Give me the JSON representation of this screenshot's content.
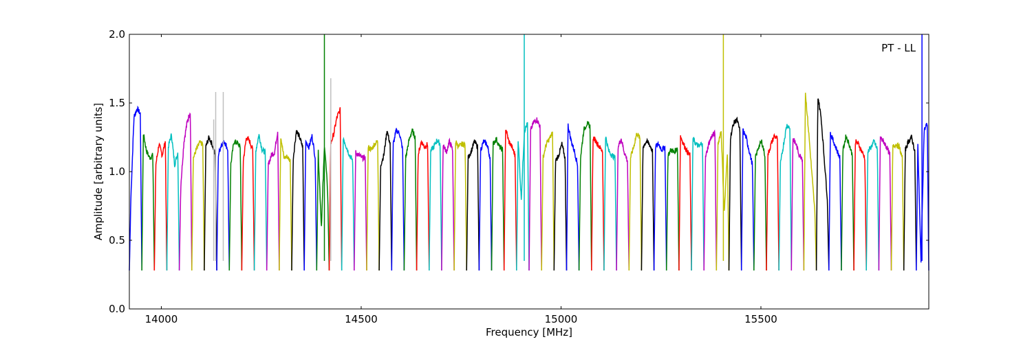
{
  "chart_data": {
    "type": "line",
    "title": "",
    "xlabel": "Frequency [MHz]",
    "ylabel": "Amplitude [arbitrary units]",
    "xlim": [
      13920,
      15920
    ],
    "ylim": [
      0.0,
      2.0
    ],
    "x_ticks": [
      14000,
      14500,
      15000,
      15500
    ],
    "y_ticks": [
      0.0,
      0.5,
      1.0,
      1.5,
      2.0
    ],
    "x_tick_labels": [
      "14000",
      "14500",
      "15000",
      "15500"
    ],
    "y_tick_labels": [
      "0.0",
      "0.5",
      "1.0",
      "1.5",
      "2.0"
    ],
    "grid": false,
    "annotation": "PT - LL",
    "channel_width_mhz": 31.25,
    "first_channel_start_mhz": 13920,
    "color_cycle": [
      "#0000ff",
      "#008000",
      "#ff0000",
      "#00bfbf",
      "#bf00bf",
      "#bfbf00",
      "#000000"
    ],
    "series": [
      {
        "start": 13920.0,
        "width": 31.25,
        "color": "#0000ff",
        "levels": [
          0.8,
          1.4,
          1.46,
          1.42
        ]
      },
      {
        "start": 13951.25,
        "width": 31.25,
        "color": "#008000",
        "levels": [
          1.28,
          1.15,
          1.1,
          1.12
        ]
      },
      {
        "start": 13982.5,
        "width": 31.25,
        "color": "#ff0000",
        "levels": [
          1.05,
          1.2,
          1.12,
          1.22
        ]
      },
      {
        "start": 14013.75,
        "width": 31.25,
        "color": "#00bfbf",
        "levels": [
          1.18,
          1.27,
          1.05,
          1.14
        ]
      },
      {
        "start": 14045.0,
        "width": 31.25,
        "color": "#bf00bf",
        "levels": [
          0.9,
          1.22,
          1.36,
          1.44
        ]
      },
      {
        "start": 14076.25,
        "width": 31.25,
        "color": "#bfbf00",
        "levels": [
          1.1,
          1.16,
          1.21,
          1.2
        ]
      },
      {
        "start": 14107.5,
        "width": 31.25,
        "color": "#000000",
        "levels": [
          1.18,
          1.25,
          1.2,
          1.12
        ]
      },
      {
        "start": 14138.75,
        "width": 31.25,
        "color": "#0000ff",
        "levels": [
          1.12,
          1.2,
          1.22,
          1.16
        ]
      },
      {
        "start": 14170.0,
        "width": 31.25,
        "color": "#008000",
        "levels": [
          1.05,
          1.22,
          1.21,
          1.18
        ]
      },
      {
        "start": 14201.25,
        "width": 31.25,
        "color": "#ff0000",
        "levels": [
          1.08,
          1.25,
          1.22,
          1.16
        ]
      },
      {
        "start": 14232.5,
        "width": 31.25,
        "color": "#00bfbf",
        "levels": [
          1.15,
          1.27,
          1.16,
          1.14
        ]
      },
      {
        "start": 14263.75,
        "width": 31.25,
        "color": "#bf00bf",
        "levels": [
          1.05,
          1.12,
          1.14,
          1.3
        ]
      },
      {
        "start": 14295.0,
        "width": 31.25,
        "color": "#bfbf00",
        "levels": [
          1.26,
          1.1,
          1.11,
          1.08
        ]
      },
      {
        "start": 14326.25,
        "width": 31.25,
        "color": "#000000",
        "levels": [
          1.1,
          1.3,
          1.25,
          1.18
        ]
      },
      {
        "start": 14357.5,
        "width": 31.25,
        "color": "#0000ff",
        "levels": [
          1.22,
          1.18,
          1.26,
          1.1
        ]
      },
      {
        "start": 14388.75,
        "width": 31.25,
        "color": "#008000",
        "levels": [
          1.15,
          0.6,
          1.2,
          0.85
        ]
      },
      {
        "start": 14420.0,
        "width": 31.25,
        "color": "#ff0000",
        "levels": [
          1.2,
          1.28,
          1.4,
          1.45
        ]
      },
      {
        "start": 14451.25,
        "width": 31.25,
        "color": "#00bfbf",
        "levels": [
          1.25,
          1.18,
          1.12,
          1.08
        ]
      },
      {
        "start": 14482.5,
        "width": 31.25,
        "color": "#bf00bf",
        "levels": [
          1.14,
          1.12,
          1.1,
          1.1
        ]
      },
      {
        "start": 14513.75,
        "width": 31.25,
        "color": "#bfbf00",
        "levels": [
          1.18,
          1.16,
          1.2,
          1.22
        ]
      },
      {
        "start": 14545.0,
        "width": 31.25,
        "color": "#000000",
        "levels": [
          1.05,
          1.12,
          1.3,
          1.2
        ]
      },
      {
        "start": 14576.25,
        "width": 31.25,
        "color": "#0000ff",
        "levels": [
          1.2,
          1.3,
          1.28,
          1.16
        ]
      },
      {
        "start": 14607.5,
        "width": 31.25,
        "color": "#008000",
        "levels": [
          1.1,
          1.22,
          1.3,
          1.25
        ]
      },
      {
        "start": 14638.75,
        "width": 31.25,
        "color": "#ff0000",
        "levels": [
          1.12,
          1.22,
          1.18,
          1.2
        ]
      },
      {
        "start": 14670.0,
        "width": 31.25,
        "color": "#00bfbf",
        "levels": [
          1.15,
          1.18,
          1.23,
          1.2
        ]
      },
      {
        "start": 14701.25,
        "width": 31.25,
        "color": "#bf00bf",
        "levels": [
          1.2,
          1.14,
          1.22,
          1.16
        ]
      },
      {
        "start": 14732.5,
        "width": 31.25,
        "color": "#bfbf00",
        "levels": [
          1.22,
          1.18,
          1.2,
          1.2
        ]
      },
      {
        "start": 14763.75,
        "width": 31.25,
        "color": "#000000",
        "levels": [
          1.1,
          1.15,
          1.22,
          1.18
        ]
      },
      {
        "start": 14795.0,
        "width": 31.25,
        "color": "#0000ff",
        "levels": [
          1.16,
          1.22,
          1.2,
          1.1
        ]
      },
      {
        "start": 14826.25,
        "width": 31.25,
        "color": "#008000",
        "levels": [
          1.2,
          1.24,
          1.18,
          1.16
        ]
      },
      {
        "start": 14857.5,
        "width": 31.25,
        "color": "#ff0000",
        "levels": [
          1.32,
          1.22,
          1.18,
          1.12
        ]
      },
      {
        "start": 14888.75,
        "width": 31.25,
        "color": "#00bfbf",
        "levels": [
          1.25,
          0.8,
          1.3,
          1.35
        ]
      },
      {
        "start": 14920.0,
        "width": 31.25,
        "color": "#bf00bf",
        "levels": [
          1.3,
          1.36,
          1.38,
          1.33
        ]
      },
      {
        "start": 14951.25,
        "width": 31.25,
        "color": "#bfbf00",
        "levels": [
          1.1,
          1.2,
          1.24,
          1.28
        ]
      },
      {
        "start": 14982.5,
        "width": 31.25,
        "color": "#000000",
        "levels": [
          1.08,
          1.12,
          1.2,
          1.1
        ]
      },
      {
        "start": 15013.75,
        "width": 31.25,
        "color": "#0000ff",
        "levels": [
          1.34,
          1.22,
          1.15,
          1.05
        ]
      },
      {
        "start": 15045.0,
        "width": 31.25,
        "color": "#008000",
        "levels": [
          1.1,
          1.3,
          1.35,
          1.33
        ]
      },
      {
        "start": 15076.25,
        "width": 31.25,
        "color": "#ff0000",
        "levels": [
          1.25,
          1.22,
          1.18,
          1.15
        ]
      },
      {
        "start": 15107.5,
        "width": 31.25,
        "color": "#00bfbf",
        "levels": [
          1.26,
          1.15,
          1.12,
          1.1
        ]
      },
      {
        "start": 15138.75,
        "width": 31.25,
        "color": "#bf00bf",
        "levels": [
          1.18,
          1.24,
          1.14,
          1.08
        ]
      },
      {
        "start": 15170.0,
        "width": 31.25,
        "color": "#bfbf00",
        "levels": [
          1.1,
          1.18,
          1.28,
          1.24
        ]
      },
      {
        "start": 15201.25,
        "width": 31.25,
        "color": "#000000",
        "levels": [
          1.18,
          1.22,
          1.2,
          1.15
        ]
      },
      {
        "start": 15232.5,
        "width": 31.25,
        "color": "#0000ff",
        "levels": [
          1.18,
          1.2,
          1.16,
          1.18
        ]
      },
      {
        "start": 15263.75,
        "width": 31.25,
        "color": "#008000",
        "levels": [
          1.12,
          1.16,
          1.14,
          1.18
        ]
      },
      {
        "start": 15295.0,
        "width": 31.25,
        "color": "#ff0000",
        "levels": [
          1.26,
          1.2,
          1.15,
          1.12
        ]
      },
      {
        "start": 15326.25,
        "width": 31.25,
        "color": "#00bfbf",
        "levels": [
          1.24,
          1.2,
          1.18,
          1.22
        ]
      },
      {
        "start": 15357.5,
        "width": 31.25,
        "color": "#bf00bf",
        "levels": [
          1.1,
          1.2,
          1.26,
          1.28
        ]
      },
      {
        "start": 15388.75,
        "width": 31.25,
        "color": "#bfbf00",
        "levels": [
          1.2,
          1.3,
          0.7,
          1.15
        ]
      },
      {
        "start": 15420.0,
        "width": 31.25,
        "color": "#000000",
        "levels": [
          1.25,
          1.35,
          1.38,
          1.3
        ]
      },
      {
        "start": 15451.25,
        "width": 31.25,
        "color": "#0000ff",
        "levels": [
          1.3,
          1.25,
          1.15,
          1.05
        ]
      },
      {
        "start": 15482.5,
        "width": 31.25,
        "color": "#008000",
        "levels": [
          1.1,
          1.18,
          1.22,
          1.12
        ]
      },
      {
        "start": 15513.75,
        "width": 31.25,
        "color": "#ff0000",
        "levels": [
          1.12,
          1.2,
          1.26,
          1.24
        ]
      },
      {
        "start": 15545.0,
        "width": 31.25,
        "color": "#00bfbf",
        "levels": [
          1.05,
          1.2,
          1.34,
          1.32
        ]
      },
      {
        "start": 15576.25,
        "width": 31.25,
        "color": "#bf00bf",
        "levels": [
          1.24,
          1.2,
          1.12,
          1.1
        ]
      },
      {
        "start": 15607.5,
        "width": 31.25,
        "color": "#bfbf00",
        "levels": [
          1.58,
          1.3,
          1.0,
          0.7
        ]
      },
      {
        "start": 15638.75,
        "width": 31.25,
        "color": "#000000",
        "levels": [
          1.55,
          1.4,
          1.1,
          0.8
        ]
      },
      {
        "start": 15670.0,
        "width": 31.25,
        "color": "#0000ff",
        "levels": [
          1.28,
          1.22,
          1.16,
          1.1
        ]
      },
      {
        "start": 15701.25,
        "width": 31.25,
        "color": "#008000",
        "levels": [
          1.15,
          1.26,
          1.2,
          1.12
        ]
      },
      {
        "start": 15732.5,
        "width": 31.25,
        "color": "#ff0000",
        "levels": [
          1.22,
          1.2,
          1.15,
          1.1
        ]
      },
      {
        "start": 15763.75,
        "width": 31.25,
        "color": "#00bfbf",
        "levels": [
          1.14,
          1.18,
          1.22,
          1.16
        ]
      },
      {
        "start": 15795.0,
        "width": 31.25,
        "color": "#bf00bf",
        "levels": [
          1.25,
          1.22,
          1.18,
          1.12
        ]
      },
      {
        "start": 15826.25,
        "width": 31.25,
        "color": "#bfbf00",
        "levels": [
          1.18,
          1.2,
          1.18,
          1.1
        ]
      },
      {
        "start": 15857.5,
        "width": 31.25,
        "color": "#000000",
        "levels": [
          1.16,
          1.22,
          1.25,
          1.15
        ]
      },
      {
        "start": 15888.75,
        "width": 31.25,
        "color": "#0000ff",
        "levels": [
          1.2,
          0.35,
          1.3,
          1.35
        ]
      }
    ],
    "spikes": [
      {
        "x": 14131,
        "y": 1.38,
        "color": "#bfbfbf"
      },
      {
        "x": 14136,
        "y": 1.58,
        "color": "#bfbfbf"
      },
      {
        "x": 14155,
        "y": 1.58,
        "color": "#bfbfbf"
      },
      {
        "x": 14408,
        "y": 2.0,
        "color": "#008000"
      },
      {
        "x": 14424,
        "y": 1.68,
        "color": "#bfbfbf"
      },
      {
        "x": 14908,
        "y": 2.0,
        "color": "#00bfbf"
      },
      {
        "x": 15406,
        "y": 2.0,
        "color": "#bfbf00"
      },
      {
        "x": 15903,
        "y": 2.0,
        "color": "#0000ff"
      }
    ],
    "channel_floor": 0.28
  }
}
